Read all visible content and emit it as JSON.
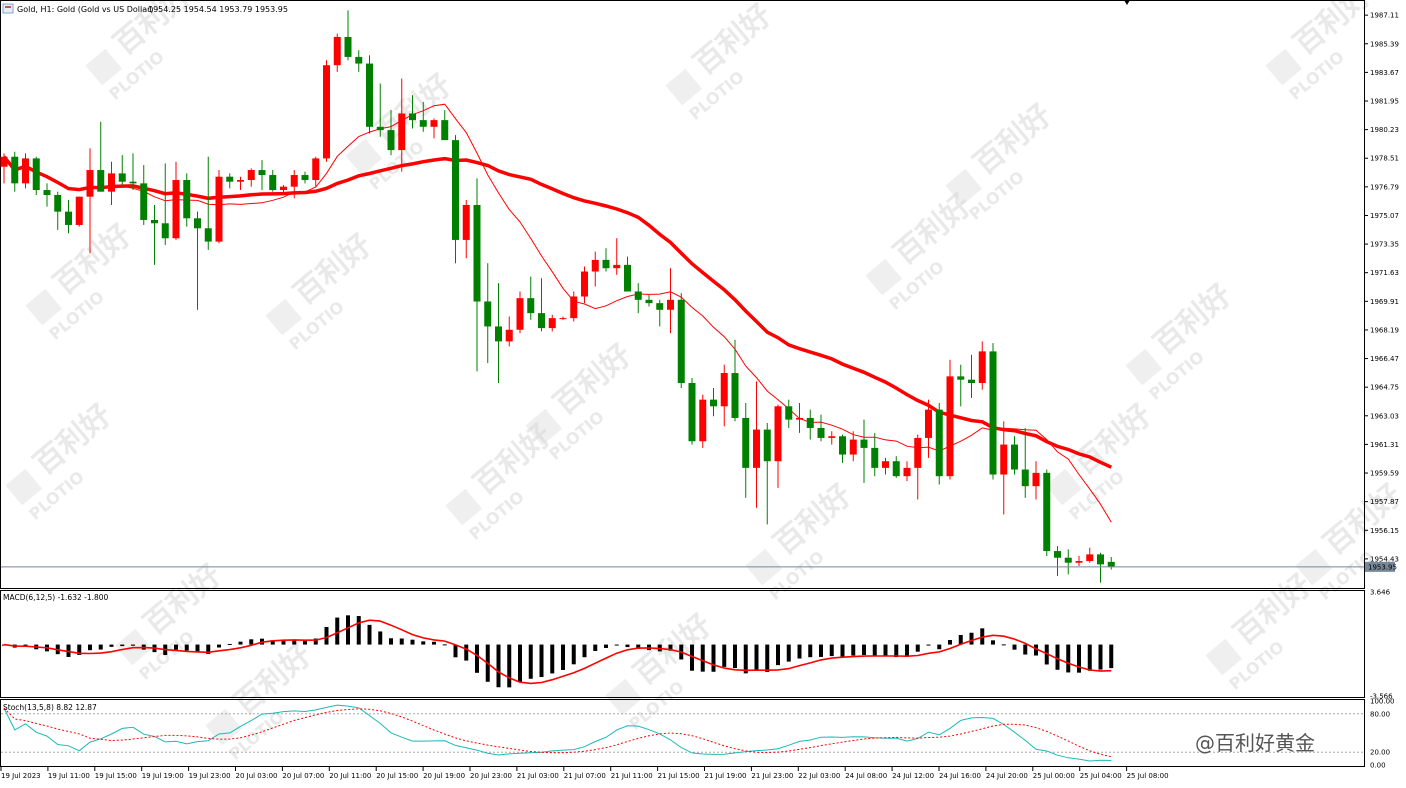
{
  "header": {
    "symbol": "Gold, H1: Gold (Gold vs US Dollar)",
    "ohlc": "1954.25 1954.54 1953.79 1953.95"
  },
  "indicators": {
    "macd_label": "MACD(6,12,5) -1.632 -1.800",
    "stoch_label": "Stoch(13,5,8) 8.82 12.87"
  },
  "brand_text": "@百利好黄金",
  "watermark": {
    "cn": "百利好",
    "en": "PLOTIO"
  },
  "colors": {
    "bull": "#008000",
    "bear": "#ff0000",
    "ma": "#ff0000",
    "stoch_main": "#1fb8b8",
    "stoch_signal": "#ff0000",
    "price_line": "#778899",
    "macd_hist": "#000000"
  },
  "chart_data": [
    {
      "type": "candlestick",
      "name": "price",
      "ylim": [
        1952.8,
        1987.9
      ],
      "yticks": [
        "1987.11",
        "1985.39",
        "1983.67",
        "1981.95",
        "1980.23",
        "1978.51",
        "1976.79",
        "1975.07",
        "1973.35",
        "1971.63",
        "1969.91",
        "1968.19",
        "1966.47",
        "1964.75",
        "1963.03",
        "1961.31",
        "1959.59",
        "1957.87",
        "1956.15",
        "1954.43"
      ],
      "current_price": "1953.95",
      "xticks": [
        "19 Jul 2023",
        "19 Jul 11:00",
        "19 Jul 15:00",
        "19 Jul 19:00",
        "19 Jul 23:00",
        "20 Jul 03:00",
        "20 Jul 07:00",
        "20 Jul 11:00",
        "20 Jul 15:00",
        "20 Jul 19:00",
        "20 Jul 23:00",
        "21 Jul 03:00",
        "21 Jul 07:00",
        "21 Jul 11:00",
        "21 Jul 15:00",
        "21 Jul 19:00",
        "21 Jul 23:00",
        "22 Jul 03:00",
        "24 Jul 08:00",
        "24 Jul 12:00",
        "24 Jul 16:00",
        "24 Jul 20:00",
        "25 Jul 00:00",
        "25 Jul 04:00",
        "25 Jul 08:00"
      ],
      "candles": [
        [
          1978.0,
          1978.8,
          1977.0,
          1978.6
        ],
        [
          1978.6,
          1978.9,
          1976.5,
          1977.0
        ],
        [
          1977.0,
          1978.8,
          1976.7,
          1978.5
        ],
        [
          1978.5,
          1978.6,
          1976.3,
          1976.6
        ],
        [
          1976.6,
          1977.0,
          1975.6,
          1976.3
        ],
        [
          1976.3,
          1976.5,
          1974.2,
          1975.3
        ],
        [
          1975.3,
          1976.0,
          1974.0,
          1974.5
        ],
        [
          1974.5,
          1976.2,
          1974.4,
          1976.2
        ],
        [
          1976.2,
          1979.1,
          1972.8,
          1977.8
        ],
        [
          1977.8,
          1980.7,
          1976.5,
          1976.5
        ],
        [
          1976.5,
          1978.3,
          1975.7,
          1977.6
        ],
        [
          1977.6,
          1978.7,
          1976.9,
          1977.1
        ],
        [
          1977.1,
          1978.8,
          1976.6,
          1977.0
        ],
        [
          1977.0,
          1978.1,
          1974.5,
          1974.8
        ],
        [
          1974.8,
          1975.7,
          1972.1,
          1974.6
        ],
        [
          1974.6,
          1978.2,
          1973.3,
          1973.7
        ],
        [
          1973.7,
          1978.3,
          1973.6,
          1977.2
        ],
        [
          1977.2,
          1977.6,
          1974.4,
          1974.9
        ],
        [
          1974.9,
          1975.3,
          1969.4,
          1974.3
        ],
        [
          1974.3,
          1978.6,
          1973.0,
          1973.5
        ],
        [
          1973.5,
          1977.8,
          1973.4,
          1977.4
        ],
        [
          1977.4,
          1977.6,
          1976.7,
          1977.1
        ],
        [
          1977.1,
          1977.4,
          1976.6,
          1977.2
        ],
        [
          1977.2,
          1977.9,
          1976.8,
          1977.8
        ],
        [
          1977.8,
          1978.4,
          1976.6,
          1977.5
        ],
        [
          1977.5,
          1977.8,
          1976.5,
          1976.6
        ],
        [
          1976.6,
          1976.9,
          1976.3,
          1976.8
        ],
        [
          1976.8,
          1977.8,
          1976.1,
          1977.5
        ],
        [
          1977.5,
          1977.7,
          1977.0,
          1977.2
        ],
        [
          1977.2,
          1978.6,
          1976.8,
          1978.5
        ],
        [
          1978.5,
          1984.4,
          1978.3,
          1984.1
        ],
        [
          1984.1,
          1986.0,
          1983.7,
          1985.8
        ],
        [
          1985.8,
          1987.4,
          1984.4,
          1984.6
        ],
        [
          1984.6,
          1985.0,
          1983.7,
          1984.2
        ],
        [
          1984.2,
          1984.7,
          1980.0,
          1980.4
        ],
        [
          1980.4,
          1983.0,
          1979.8,
          1980.2
        ],
        [
          1980.2,
          1981.4,
          1978.7,
          1979.0
        ],
        [
          1979.0,
          1983.3,
          1977.7,
          1981.2
        ],
        [
          1981.2,
          1982.3,
          1980.3,
          1980.8
        ],
        [
          1980.8,
          1981.9,
          1980.1,
          1980.4
        ],
        [
          1980.4,
          1980.9,
          1979.7,
          1980.8
        ],
        [
          1980.8,
          1981.4,
          1979.6,
          1979.6
        ],
        [
          1979.6,
          1979.9,
          1972.2,
          1973.6
        ],
        [
          1973.6,
          1976.0,
          1972.5,
          1975.7
        ],
        [
          1975.7,
          1977.3,
          1965.7,
          1969.9
        ],
        [
          1969.9,
          1972.2,
          1966.2,
          1968.4
        ],
        [
          1968.4,
          1971.0,
          1965.0,
          1967.5
        ],
        [
          1967.5,
          1969.0,
          1967.2,
          1968.2
        ],
        [
          1968.2,
          1970.5,
          1968.0,
          1970.1
        ],
        [
          1970.1,
          1971.4,
          1968.8,
          1969.2
        ],
        [
          1969.2,
          1971.3,
          1968.1,
          1968.3
        ],
        [
          1968.3,
          1969.1,
          1968.1,
          1968.9
        ],
        [
          1968.9,
          1969.0,
          1968.8,
          1968.9
        ],
        [
          1968.9,
          1970.5,
          1968.7,
          1970.2
        ],
        [
          1970.2,
          1972.0,
          1969.8,
          1971.7
        ],
        [
          1971.7,
          1972.9,
          1970.8,
          1972.4
        ],
        [
          1972.4,
          1973.1,
          1971.7,
          1971.9
        ],
        [
          1971.9,
          1973.7,
          1971.5,
          1972.1
        ],
        [
          1972.1,
          1972.6,
          1970.7,
          1970.5
        ],
        [
          1970.5,
          1971.0,
          1969.2,
          1970.0
        ],
        [
          1970.0,
          1970.3,
          1969.6,
          1969.8
        ],
        [
          1969.8,
          1970.0,
          1968.4,
          1969.4
        ],
        [
          1969.4,
          1971.9,
          1968.0,
          1970.0
        ],
        [
          1970.0,
          1970.4,
          1964.7,
          1965.0
        ],
        [
          1965.0,
          1965.3,
          1961.3,
          1961.5
        ],
        [
          1961.5,
          1964.3,
          1961.1,
          1964.0
        ],
        [
          1964.0,
          1964.7,
          1963.0,
          1963.6
        ],
        [
          1963.6,
          1966.1,
          1962.4,
          1965.6
        ],
        [
          1965.6,
          1967.6,
          1962.7,
          1962.9
        ],
        [
          1962.9,
          1963.8,
          1958.1,
          1959.9
        ],
        [
          1959.9,
          1965.1,
          1957.5,
          1962.2
        ],
        [
          1962.2,
          1962.6,
          1956.5,
          1960.3
        ],
        [
          1960.3,
          1963.7,
          1958.7,
          1963.6
        ],
        [
          1963.6,
          1964.0,
          1962.3,
          1962.8
        ],
        [
          1962.8,
          1963.8,
          1962.0,
          1962.9
        ],
        [
          1962.9,
          1963.4,
          1961.6,
          1962.3
        ],
        [
          1962.3,
          1963.1,
          1961.5,
          1961.7
        ],
        [
          1961.7,
          1962.1,
          1961.3,
          1961.8
        ],
        [
          1961.8,
          1961.9,
          1960.2,
          1960.7
        ],
        [
          1960.7,
          1962.1,
          1960.3,
          1961.6
        ],
        [
          1961.6,
          1962.8,
          1959.0,
          1961.1
        ],
        [
          1961.1,
          1962.0,
          1959.4,
          1959.9
        ],
        [
          1959.9,
          1960.5,
          1959.5,
          1960.3
        ],
        [
          1960.3,
          1960.6,
          1959.3,
          1959.4
        ],
        [
          1959.4,
          1960.3,
          1959.1,
          1959.9
        ],
        [
          1959.9,
          1961.9,
          1958.0,
          1961.7
        ],
        [
          1961.7,
          1964.0,
          1960.5,
          1963.4
        ],
        [
          1963.4,
          1963.8,
          1958.9,
          1959.4
        ],
        [
          1959.4,
          1966.4,
          1959.2,
          1965.4
        ],
        [
          1965.4,
          1966.1,
          1963.6,
          1965.2
        ],
        [
          1965.2,
          1966.7,
          1964.1,
          1965.0
        ],
        [
          1965.0,
          1967.5,
          1964.6,
          1966.9
        ],
        [
          1966.9,
          1967.4,
          1959.2,
          1959.5
        ],
        [
          1959.5,
          1962.7,
          1957.1,
          1961.3
        ],
        [
          1961.3,
          1961.8,
          1959.5,
          1959.8
        ],
        [
          1959.8,
          1962.3,
          1958.1,
          1958.8
        ],
        [
          1958.8,
          1960.3,
          1958.0,
          1959.6
        ],
        [
          1959.6,
          1959.8,
          1954.6,
          1954.9
        ],
        [
          1954.9,
          1955.2,
          1953.4,
          1954.5
        ],
        [
          1954.5,
          1955.0,
          1953.5,
          1954.2
        ],
        [
          1954.2,
          1954.6,
          1954.0,
          1954.3
        ],
        [
          1954.3,
          1955.1,
          1954.2,
          1954.7
        ],
        [
          1954.7,
          1954.8,
          1953.0,
          1954.1
        ],
        [
          1954.25,
          1954.54,
          1953.79,
          1953.95
        ]
      ]
    },
    {
      "type": "bar",
      "name": "MACD(6,12,5)",
      "ylim": [
        -3.566,
        3.646
      ],
      "yticks": [
        "3.646",
        "-3.566"
      ],
      "value": -1.632,
      "signal": -1.8
    },
    {
      "type": "line",
      "name": "Stoch(13,5,8)",
      "ylim": [
        0,
        100
      ],
      "yticks": [
        "100.00",
        "80.00",
        "20.00",
        "0.00"
      ],
      "main": 8.82,
      "signal": 12.87
    }
  ]
}
